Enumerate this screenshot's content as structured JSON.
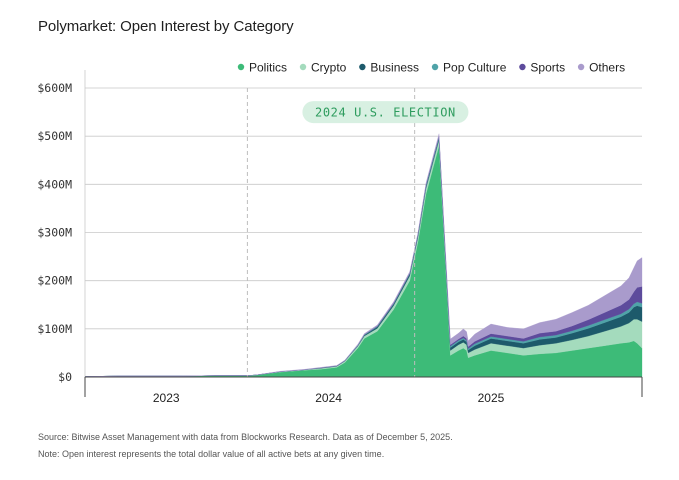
{
  "chart_data": {
    "type": "area",
    "stacked": true,
    "title": "Polymarket: Open Interest by Category",
    "xlabel": "",
    "ylabel": "",
    "x_range": [
      2022.5,
      2025.93
    ],
    "ylim": [
      0,
      600
    ],
    "y_ticks": [
      0,
      100,
      200,
      300,
      400,
      500,
      600
    ],
    "y_tick_labels": [
      "$0",
      "$100M",
      "$200M",
      "$300M",
      "$400M",
      "$500M",
      "$600M"
    ],
    "x_ticks": [
      2023.0,
      2024.0,
      2025.0
    ],
    "x_tick_labels": [
      "2023",
      "2024",
      "2025"
    ],
    "grid": "horizontal",
    "legend": [
      "Politics",
      "Crypto",
      "Business",
      "Pop Culture",
      "Sports",
      "Others"
    ],
    "legend_position": "top-right",
    "x": [
      2022.5,
      2022.7,
      2022.9,
      2023.1,
      2023.3,
      2023.5,
      2023.55,
      2023.7,
      2023.85,
      2023.95,
      2024.05,
      2024.1,
      2024.18,
      2024.22,
      2024.3,
      2024.4,
      2024.5,
      2024.55,
      2024.6,
      2024.68,
      2024.75,
      2024.8,
      2024.83,
      2024.85,
      2024.86,
      2024.9,
      2025.0,
      2025.1,
      2025.2,
      2025.3,
      2025.4,
      2025.5,
      2025.6,
      2025.7,
      2025.8,
      2025.85,
      2025.88,
      2025.9,
      2025.93
    ],
    "series": [
      {
        "name": "Politics",
        "color": "#3dbb78",
        "values": [
          1,
          2,
          2,
          2,
          3,
          3,
          4,
          10,
          14,
          16,
          20,
          30,
          60,
          80,
          95,
          140,
          200,
          280,
          380,
          480,
          45,
          55,
          60,
          55,
          40,
          45,
          55,
          50,
          45,
          48,
          50,
          55,
          60,
          65,
          70,
          72,
          75,
          70,
          60
        ]
      },
      {
        "name": "Crypto",
        "color": "#a4dbbd",
        "values": [
          0,
          0,
          0,
          0,
          0,
          0,
          0,
          1,
          1,
          2,
          2,
          3,
          4,
          5,
          6,
          8,
          10,
          10,
          12,
          12,
          10,
          12,
          12,
          12,
          10,
          12,
          15,
          15,
          15,
          18,
          20,
          22,
          25,
          30,
          35,
          40,
          45,
          50,
          55
        ]
      },
      {
        "name": "Business",
        "color": "#1d5a6b",
        "values": [
          0,
          0,
          0,
          0,
          0,
          0,
          0,
          0,
          0,
          1,
          1,
          1,
          1,
          2,
          3,
          3,
          4,
          4,
          4,
          4,
          6,
          6,
          6,
          6,
          6,
          8,
          10,
          10,
          10,
          12,
          12,
          14,
          16,
          18,
          20,
          22,
          25,
          28,
          30
        ]
      },
      {
        "name": "Pop Culture",
        "color": "#4fa3a8",
        "values": [
          0,
          0,
          0,
          0,
          0,
          0,
          0,
          0,
          0,
          0,
          0,
          0,
          1,
          1,
          1,
          1,
          1,
          1,
          2,
          2,
          3,
          3,
          3,
          3,
          3,
          4,
          4,
          4,
          4,
          5,
          5,
          5,
          6,
          6,
          6,
          7,
          7,
          8,
          8
        ]
      },
      {
        "name": "Sports",
        "color": "#5d4b9c",
        "values": [
          0,
          0,
          0,
          0,
          0,
          0,
          0,
          0,
          0,
          0,
          0,
          0,
          0,
          0,
          1,
          1,
          1,
          1,
          1,
          2,
          3,
          3,
          4,
          4,
          4,
          5,
          6,
          6,
          6,
          8,
          8,
          10,
          12,
          15,
          18,
          20,
          25,
          30,
          35
        ]
      },
      {
        "name": "Others",
        "color": "#a99bcc",
        "values": [
          0,
          0,
          0,
          0,
          0,
          0,
          0,
          1,
          1,
          1,
          1,
          1,
          2,
          2,
          2,
          3,
          3,
          3,
          4,
          5,
          12,
          12,
          15,
          14,
          12,
          15,
          20,
          18,
          20,
          22,
          25,
          28,
          30,
          35,
          40,
          45,
          50,
          55,
          60
        ]
      }
    ],
    "vertical_markers": [
      {
        "x": 2023.5,
        "style": "dashed"
      },
      {
        "x": 2024.53,
        "style": "dashed"
      }
    ],
    "annotations": [
      {
        "text": "2024 U.S. ELECTION",
        "x": 2024.35,
        "y": 550
      }
    ]
  },
  "footer": {
    "source": "Source: Bitwise Asset Management with data from Blockworks Research. Data as of December 5, 2025.",
    "note": "Note: Open interest represents the total dollar value of all active bets at any given time."
  }
}
